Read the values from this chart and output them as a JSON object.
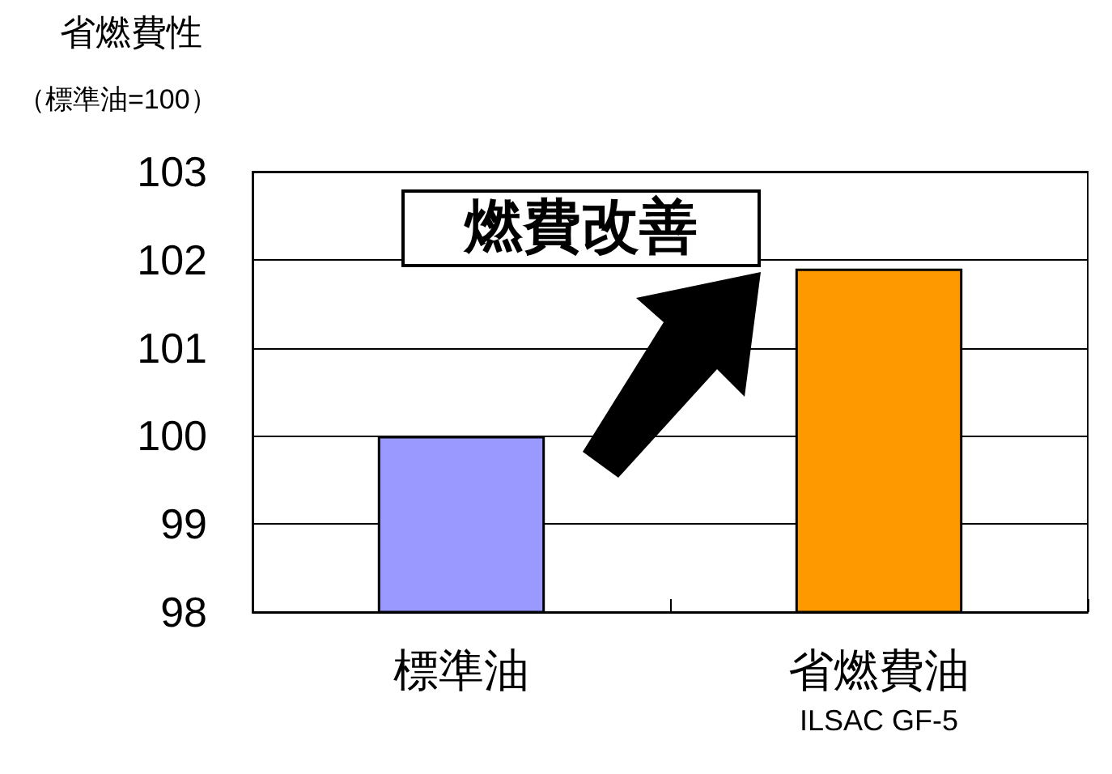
{
  "chart_data": {
    "type": "bar",
    "title": "省燃費性",
    "subtitle": "（標準油=100）",
    "categories": [
      "標準油",
      "省燃費油\nILSAC GF-5"
    ],
    "values": [
      100,
      101.9
    ],
    "colors": [
      "#9999ff",
      "#ff9900"
    ],
    "ylim": [
      98,
      103
    ],
    "yticks": [
      98,
      99,
      100,
      101,
      102,
      103
    ],
    "grid": "y",
    "annotations": [
      "燃費改善"
    ]
  }
}
